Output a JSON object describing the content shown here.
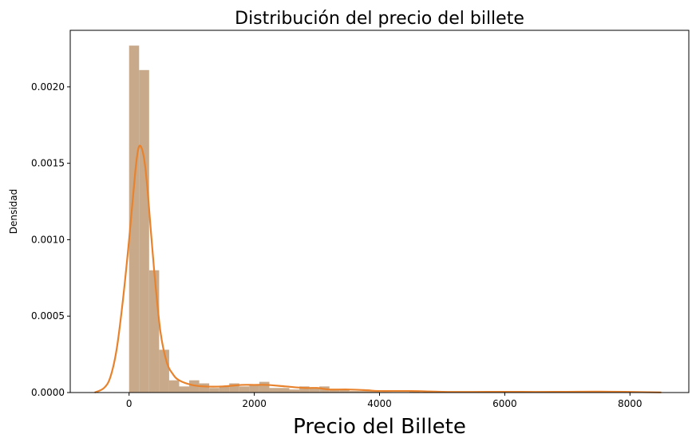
{
  "chart_data": {
    "type": "bar",
    "title": "Distribución del precio del billete",
    "xlabel": "Precio del Billete",
    "ylabel": "Densidad",
    "xlim": [
      -940,
      8940
    ],
    "ylim": [
      0,
      0.00237
    ],
    "x_ticks": [
      {
        "value": 0,
        "label": "0"
      },
      {
        "value": 2000,
        "label": "2000"
      },
      {
        "value": 4000,
        "label": "4000"
      },
      {
        "value": 6000,
        "label": "6000"
      },
      {
        "value": 8000,
        "label": "8000"
      }
    ],
    "y_ticks": [
      {
        "value": 0,
        "label": "0.0000"
      },
      {
        "value": 0.0005,
        "label": "0.0005"
      },
      {
        "value": 0.001,
        "label": "0.0010"
      },
      {
        "value": 0.0015,
        "label": "0.0015"
      },
      {
        "value": 0.002,
        "label": "0.0020"
      }
    ],
    "grid": false,
    "colors": {
      "histogram": "#c8aa8b",
      "kde": "#e8822c"
    },
    "bin_width": 160,
    "histogram": [
      {
        "x0": 0,
        "x1": 160,
        "density": 0.00227
      },
      {
        "x0": 160,
        "x1": 320,
        "density": 0.00211
      },
      {
        "x0": 320,
        "x1": 480,
        "density": 0.0008
      },
      {
        "x0": 480,
        "x1": 640,
        "density": 0.00028
      },
      {
        "x0": 640,
        "x1": 800,
        "density": 8e-05
      },
      {
        "x0": 800,
        "x1": 960,
        "density": 4e-05
      },
      {
        "x0": 960,
        "x1": 1120,
        "density": 8e-05
      },
      {
        "x0": 1120,
        "x1": 1280,
        "density": 6e-05
      },
      {
        "x0": 1280,
        "x1": 1440,
        "density": 3e-05
      },
      {
        "x0": 1440,
        "x1": 1600,
        "density": 4e-05
      },
      {
        "x0": 1600,
        "x1": 1760,
        "density": 6e-05
      },
      {
        "x0": 1760,
        "x1": 1920,
        "density": 4e-05
      },
      {
        "x0": 1920,
        "x1": 2080,
        "density": 5e-05
      },
      {
        "x0": 2080,
        "x1": 2240,
        "density": 7e-05
      },
      {
        "x0": 2240,
        "x1": 2400,
        "density": 3e-05
      },
      {
        "x0": 2400,
        "x1": 2560,
        "density": 3e-05
      },
      {
        "x0": 2560,
        "x1": 2720,
        "density": 2e-05
      },
      {
        "x0": 2720,
        "x1": 2880,
        "density": 4e-05
      },
      {
        "x0": 2880,
        "x1": 3040,
        "density": 3e-05
      },
      {
        "x0": 3040,
        "x1": 3200,
        "density": 4e-05
      },
      {
        "x0": 3200,
        "x1": 3360,
        "density": 2e-05
      },
      {
        "x0": 3360,
        "x1": 3520,
        "density": 2e-05
      },
      {
        "x0": 3520,
        "x1": 3680,
        "density": 1e-05
      },
      {
        "x0": 3680,
        "x1": 3840,
        "density": 1e-05
      },
      {
        "x0": 3840,
        "x1": 4000,
        "density": 1e-05
      },
      {
        "x0": 4480,
        "x1": 4640,
        "density": 1e-05
      },
      {
        "x0": 7200,
        "x1": 7360,
        "density": 1e-05
      }
    ],
    "kde": {
      "x": [
        -550,
        -400,
        -300,
        -200,
        -100,
        0,
        100,
        150,
        200,
        250,
        300,
        400,
        500,
        600,
        700,
        800,
        1000,
        1200,
        1500,
        1800,
        2000,
        2200,
        2500,
        2800,
        3000,
        3200,
        3500,
        3800,
        4000,
        4500,
        5000,
        5500,
        6000,
        6500,
        7000,
        7500,
        8000,
        8500
      ],
      "y": [
        0.0,
        3e-05,
        0.0001,
        0.00028,
        0.0006,
        0.001,
        0.00145,
        0.0016,
        0.0016,
        0.0015,
        0.0013,
        0.0008,
        0.0004,
        0.0002,
        0.00012,
        8e-05,
        5e-05,
        4e-05,
        4e-05,
        5e-05,
        5e-05,
        5e-05,
        4e-05,
        3e-05,
        3e-05,
        2e-05,
        2e-05,
        1.5e-05,
        1e-05,
        1e-05,
        5e-06,
        4e-06,
        5e-06,
        4e-06,
        5e-06,
        6e-06,
        4e-06,
        1e-06
      ]
    }
  }
}
